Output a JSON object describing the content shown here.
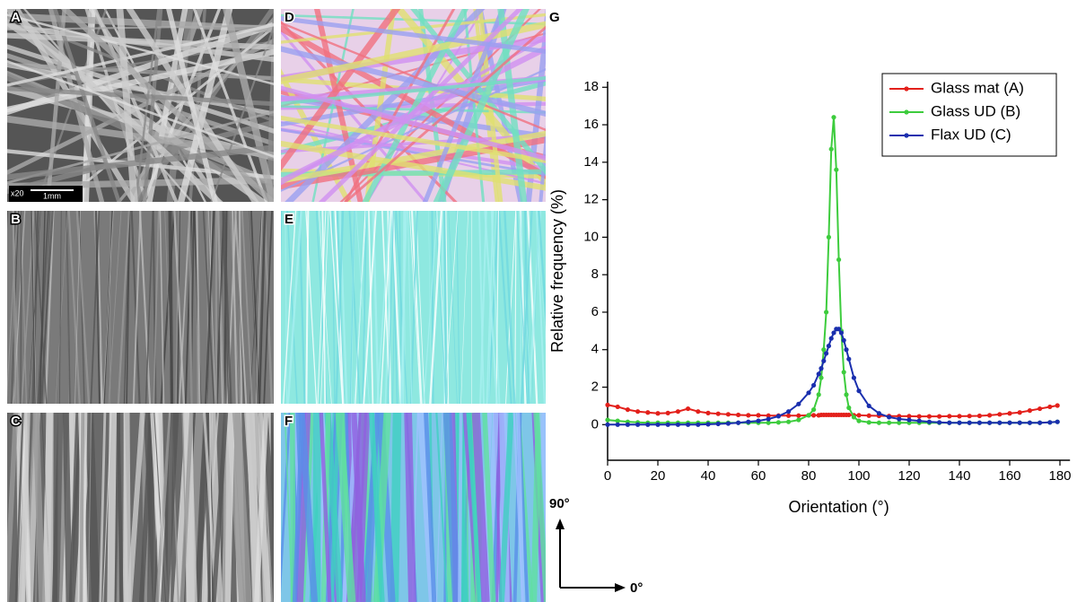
{
  "panel_labels": [
    "A",
    "B",
    "C",
    "D",
    "E",
    "F",
    "G"
  ],
  "scale_bar": {
    "magnification": "x20",
    "length": "1mm"
  },
  "orientation_key": {
    "vertical": "90°",
    "horizontal": "0°"
  },
  "chart_data": {
    "type": "line",
    "x_label": "Orientation (°)",
    "y_label": "Relative frequency (%)",
    "x": [
      0,
      4,
      8,
      12,
      16,
      20,
      24,
      28,
      32,
      36,
      40,
      44,
      48,
      52,
      56,
      60,
      64,
      68,
      72,
      76,
      80,
      82,
      84,
      85,
      86,
      87,
      88,
      89,
      90,
      91,
      92,
      93,
      94,
      95,
      96,
      98,
      100,
      104,
      108,
      112,
      116,
      120,
      124,
      128,
      132,
      136,
      140,
      144,
      148,
      152,
      156,
      160,
      164,
      168,
      172,
      176,
      179
    ],
    "series": [
      {
        "name": "Glass mat (A)",
        "color": "#e3201b",
        "values": [
          1.05,
          0.95,
          0.8,
          0.7,
          0.65,
          0.6,
          0.62,
          0.7,
          0.85,
          0.7,
          0.62,
          0.58,
          0.55,
          0.52,
          0.5,
          0.5,
          0.48,
          0.48,
          0.48,
          0.48,
          0.5,
          0.5,
          0.5,
          0.52,
          0.52,
          0.52,
          0.52,
          0.52,
          0.52,
          0.52,
          0.52,
          0.52,
          0.52,
          0.52,
          0.52,
          0.5,
          0.5,
          0.48,
          0.47,
          0.46,
          0.45,
          0.45,
          0.44,
          0.44,
          0.44,
          0.45,
          0.45,
          0.46,
          0.47,
          0.5,
          0.55,
          0.6,
          0.65,
          0.75,
          0.85,
          0.95,
          1.02
        ]
      },
      {
        "name": "Glass UD (B)",
        "color": "#3dcc3d",
        "values": [
          0.25,
          0.2,
          0.15,
          0.12,
          0.1,
          0.1,
          0.1,
          0.1,
          0.1,
          0.1,
          0.1,
          0.1,
          0.1,
          0.1,
          0.1,
          0.1,
          0.1,
          0.12,
          0.15,
          0.25,
          0.5,
          0.8,
          1.6,
          2.5,
          4,
          6,
          10,
          14.7,
          16.4,
          13.6,
          8.8,
          5,
          2.8,
          1.6,
          0.9,
          0.4,
          0.2,
          0.12,
          0.1,
          0.1,
          0.1,
          0.1,
          0.1,
          0.1,
          0.1,
          0.1,
          0.1,
          0.1,
          0.1,
          0.1,
          0.1,
          0.1,
          0.1,
          0.1,
          0.1,
          0.12,
          0.15
        ]
      },
      {
        "name": "Flax UD (C)",
        "color": "#1a2fae",
        "values": [
          0,
          0,
          0,
          0,
          0,
          0,
          0,
          0,
          0,
          0,
          0.02,
          0.04,
          0.06,
          0.1,
          0.15,
          0.2,
          0.3,
          0.45,
          0.7,
          1.1,
          1.7,
          2.1,
          2.7,
          3.0,
          3.4,
          3.8,
          4.2,
          4.6,
          4.9,
          5.1,
          5.1,
          4.9,
          4.5,
          4.0,
          3.5,
          2.5,
          1.8,
          1.0,
          0.6,
          0.4,
          0.3,
          0.25,
          0.2,
          0.15,
          0.12,
          0.1,
          0.1,
          0.1,
          0.1,
          0.1,
          0.1,
          0.1,
          0.1,
          0.1,
          0.1,
          0.12,
          0.15
        ]
      }
    ],
    "xlim": [
      0,
      184
    ],
    "ylim": [
      -1.9,
      18.3
    ],
    "xticks": [
      0,
      20,
      40,
      60,
      80,
      100,
      120,
      140,
      160,
      180
    ],
    "yticks": [
      0,
      2,
      4,
      6,
      8,
      10,
      12,
      14,
      16,
      18
    ],
    "legend": "upper right"
  }
}
